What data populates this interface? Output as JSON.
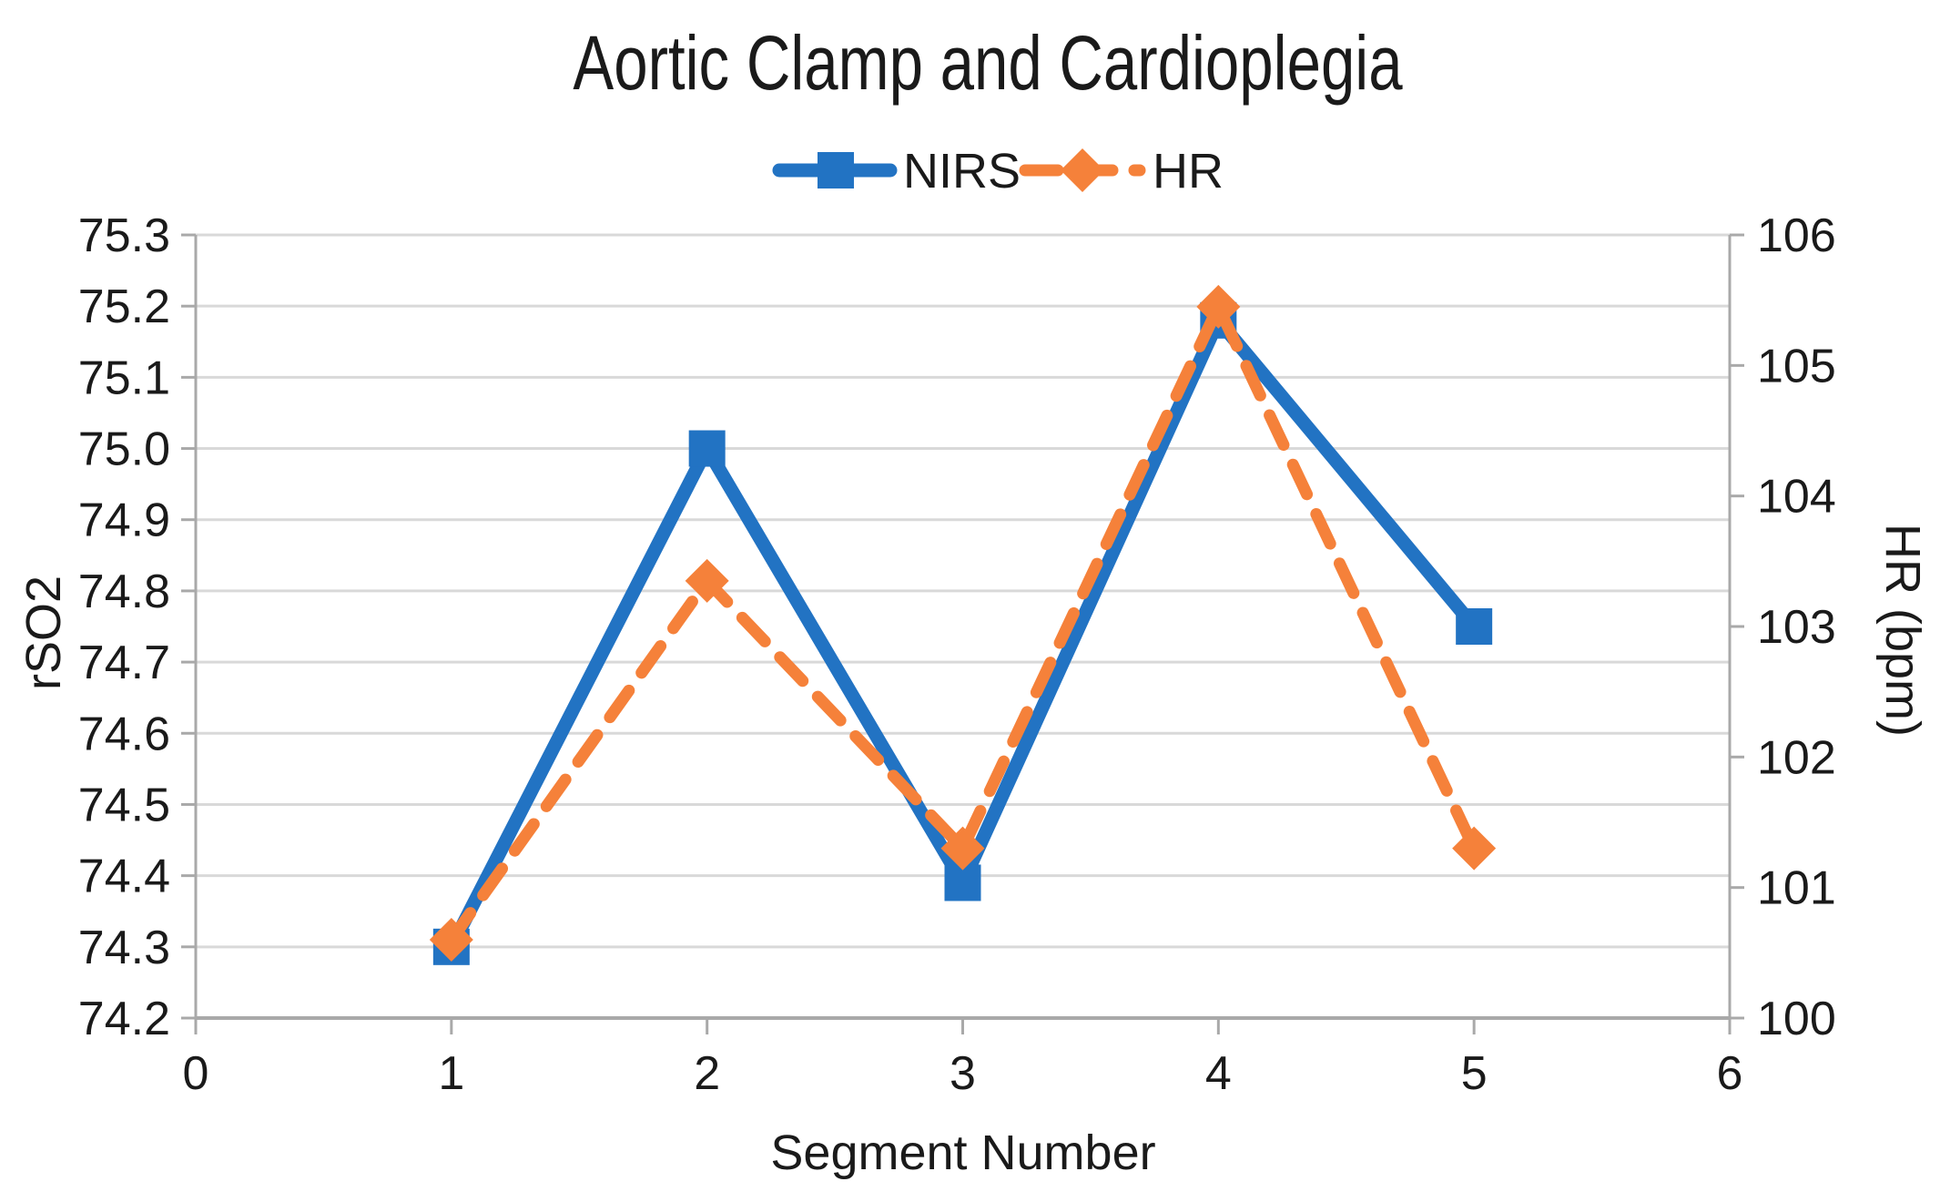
{
  "chart_data": {
    "type": "line",
    "title": "Aortic Clamp and Cardioplegia",
    "xlabel": "Segment Number",
    "legend_position": "top",
    "grid": "horizontal",
    "x": [
      1,
      2,
      3,
      4,
      5
    ],
    "series": [
      {
        "name": "NIRS",
        "axis": "left",
        "color": "#2273C3",
        "line_style": "solid",
        "marker": "square",
        "values": [
          74.3,
          75.0,
          74.39,
          75.18,
          74.75
        ]
      },
      {
        "name": "HR",
        "axis": "right",
        "color": "#F5813A",
        "line_style": "dashed",
        "marker": "diamond",
        "values": [
          100.6,
          103.35,
          101.3,
          105.45,
          101.3
        ]
      }
    ],
    "left_axis": {
      "label": "rSO2",
      "min": 74.2,
      "max": 75.3,
      "tick_step": 0.1,
      "ticks": [
        "75.3",
        "75.2",
        "75.1",
        "75.0",
        "74.9",
        "74.8",
        "74.7",
        "74.6",
        "74.5",
        "74.4",
        "74.3",
        "74.2"
      ]
    },
    "right_axis": {
      "label": "HR (bpm)",
      "min": 100,
      "max": 106,
      "tick_step": 1,
      "ticks": [
        "106",
        "105",
        "104",
        "103",
        "102",
        "101",
        "100"
      ]
    },
    "x_axis": {
      "min": 0,
      "max": 6,
      "tick_step": 1,
      "ticks": [
        "0",
        "1",
        "2",
        "3",
        "4",
        "5",
        "6"
      ]
    },
    "colors": {
      "gridline": "#D9D9D9",
      "axis_line": "#A9A9A9",
      "text": "#1A1A1A",
      "background": "#FFFFFF"
    }
  }
}
